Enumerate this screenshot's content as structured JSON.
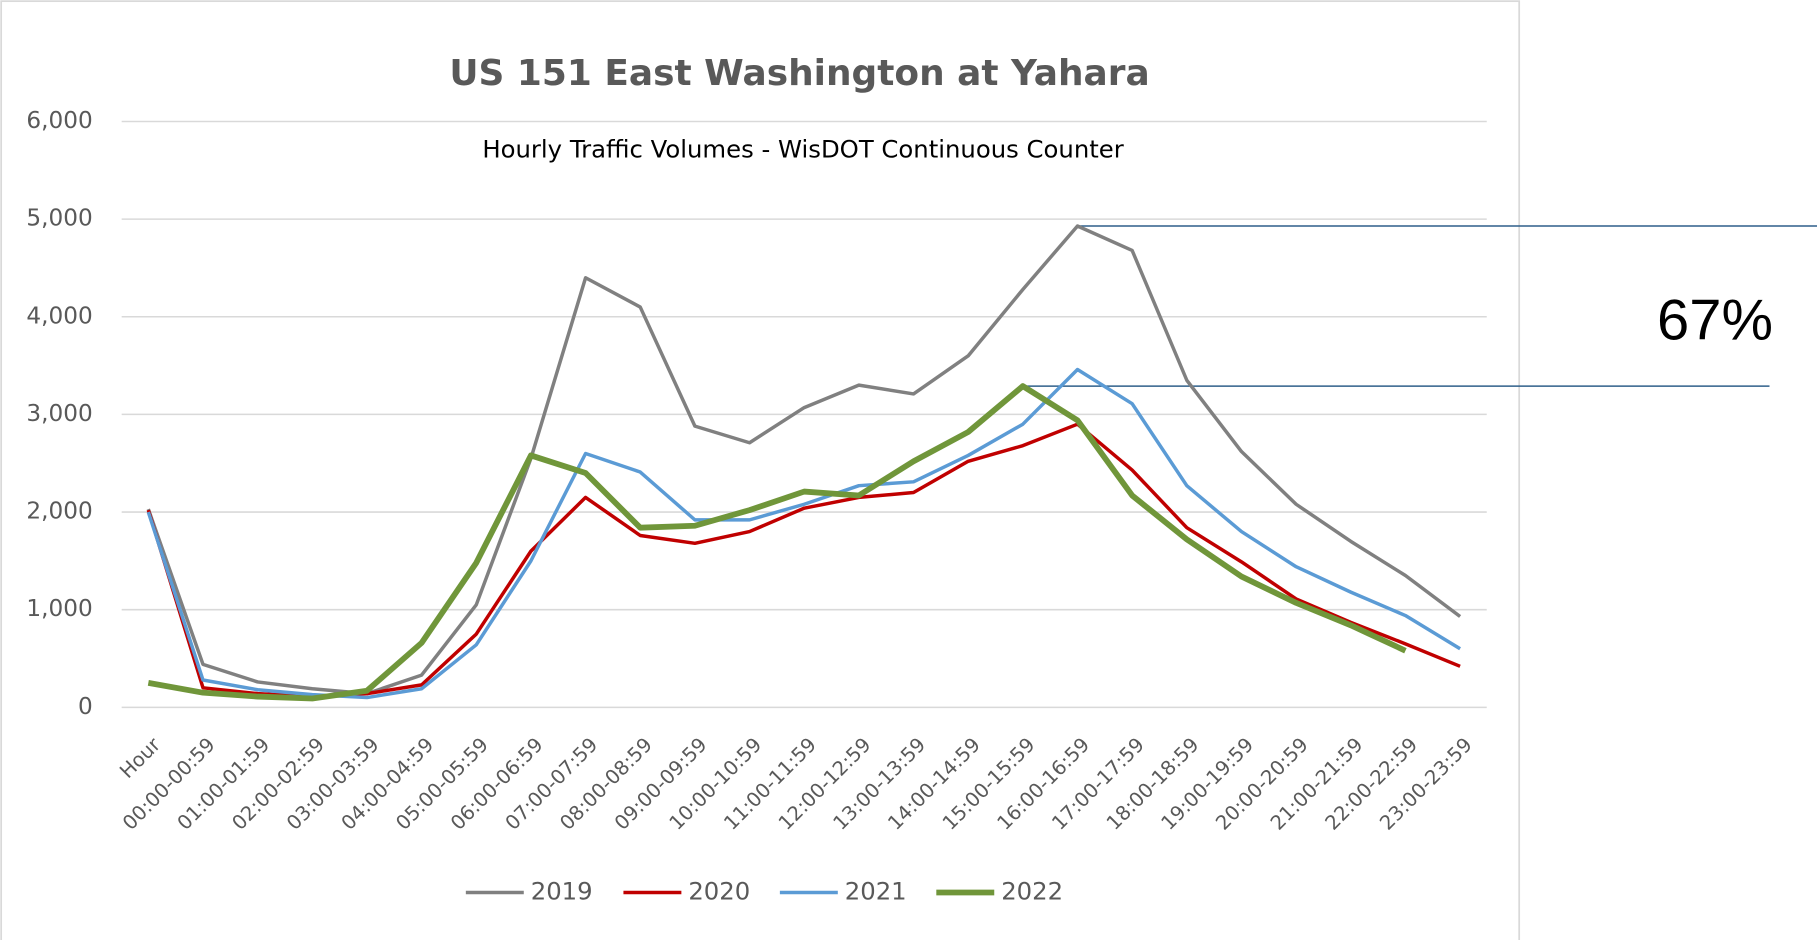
{
  "chart_data": {
    "type": "line",
    "title": "US 151 East Washington  at Yahara",
    "subtitle": "Hourly Traffic Volumes - WisDOT Continuous Counter",
    "annotation": "67%",
    "categories": [
      "Hour",
      "00:00-00:59",
      "01:00-01:59",
      "02:00-02:59",
      "03:00-03:59",
      "04:00-04:59",
      "05:00-05:59",
      "06:00-06:59",
      "07:00-07:59",
      "08:00-08:59",
      "09:00-09:59",
      "10:00-10:59",
      "11:00-11:59",
      "12:00-12:59",
      "13:00-13:59",
      "14:00-14:59",
      "15:00-15:59",
      "16:00-16:59",
      "17:00-17:59",
      "18:00-18:59",
      "19:00-19:59",
      "20:00-20:59",
      "21:00-21:59",
      "22:00-22:59",
      "23:00-23:59"
    ],
    "series": [
      {
        "name": "2019",
        "color": "#808080",
        "values": [
          2030,
          440,
          260,
          190,
          140,
          330,
          1050,
          2550,
          4400,
          4100,
          2880,
          2710,
          3070,
          3300,
          3210,
          3600,
          4280,
          4930,
          4680,
          3350,
          2620,
          2080,
          1700,
          1350,
          930
        ]
      },
      {
        "name": "2020",
        "color": "#c00000",
        "values": [
          2020,
          200,
          140,
          110,
          140,
          230,
          750,
          1600,
          2150,
          1760,
          1680,
          1800,
          2040,
          2150,
          2200,
          2520,
          2680,
          2900,
          2430,
          1840,
          1490,
          1110,
          870,
          650,
          420
        ]
      },
      {
        "name": "2021",
        "color": "#5b9bd5",
        "values": [
          2000,
          280,
          180,
          130,
          100,
          190,
          640,
          1500,
          2600,
          2410,
          1920,
          1920,
          2080,
          2270,
          2310,
          2580,
          2900,
          3460,
          3110,
          2270,
          1800,
          1440,
          1180,
          940,
          600
        ]
      },
      {
        "name": "2022",
        "color": "#70963a",
        "values": [
          250,
          150,
          110,
          90,
          170,
          660,
          1480,
          2580,
          2400,
          1840,
          1860,
          2020,
          2210,
          2170,
          2520,
          2820,
          3290,
          2940,
          2170,
          1720,
          1340,
          1070,
          840,
          580,
          null
        ]
      }
    ],
    "ylim": [
      0,
      6000
    ],
    "yticks": [
      0,
      {
        "value": 1000,
        "label": "1,000"
      },
      {
        "value": 2000,
        "label": "2,000"
      },
      {
        "value": 3000,
        "label": "3,000"
      },
      {
        "value": 4000,
        "label": "4,000"
      },
      {
        "value": 5000,
        "label": "5,000"
      },
      {
        "value": 6000,
        "label": "6,000"
      }
    ],
    "grid": true,
    "legend": "bottom"
  }
}
